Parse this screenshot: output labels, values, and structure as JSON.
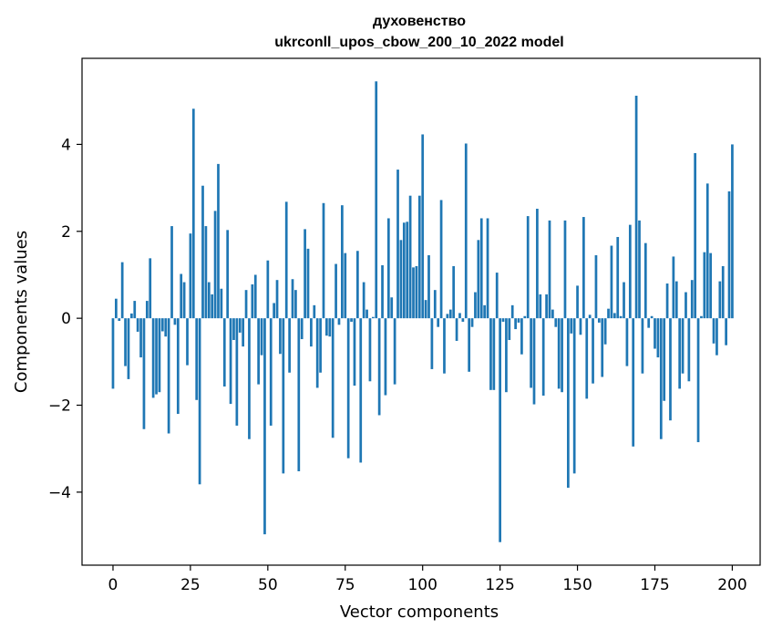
{
  "chart_data": {
    "type": "bar",
    "title": "духовенство",
    "subtitle": "ukrconll_upos_cbow_200_10_2022 model",
    "xlabel": "Vector components",
    "ylabel": "Components values",
    "xlim": [
      -10,
      209
    ],
    "ylim": [
      -5.68,
      5.98
    ],
    "xticks": [
      0,
      25,
      50,
      75,
      100,
      125,
      150,
      175,
      200
    ],
    "yticks": [
      -4,
      -2,
      0,
      2,
      4
    ],
    "grid": false,
    "bar_color": "#1f77b4",
    "x_start": 0,
    "values": [
      -1.62,
      0.45,
      -0.06,
      1.29,
      -1.1,
      -1.4,
      0.11,
      0.4,
      -0.31,
      -0.9,
      -2.55,
      0.4,
      1.38,
      -1.83,
      -1.75,
      -1.7,
      -0.3,
      -0.42,
      -2.65,
      2.12,
      -0.15,
      -2.2,
      1.02,
      0.83,
      -1.08,
      1.95,
      4.82,
      -1.88,
      -3.82,
      3.05,
      2.12,
      0.83,
      0.55,
      2.47,
      3.55,
      0.68,
      -1.57,
      2.03,
      -1.97,
      -0.5,
      -2.47,
      -0.33,
      -0.65,
      0.65,
      -2.78,
      0.78,
      1.0,
      -1.52,
      -0.85,
      -4.97,
      1.33,
      -2.47,
      0.35,
      0.88,
      -0.82,
      -3.57,
      2.68,
      -1.25,
      0.9,
      0.65,
      -3.52,
      -0.48,
      2.05,
      1.6,
      -0.65,
      0.3,
      -1.6,
      -1.25,
      2.65,
      -0.4,
      -0.42,
      -2.75,
      1.25,
      -0.15,
      2.6,
      1.5,
      -3.22,
      -0.08,
      -1.55,
      1.55,
      -3.32,
      0.83,
      0.2,
      -1.45,
      0.03,
      5.45,
      -2.23,
      1.22,
      -1.77,
      2.3,
      0.48,
      -1.52,
      3.42,
      1.8,
      2.2,
      2.22,
      2.82,
      1.17,
      1.2,
      2.82,
      4.23,
      0.42,
      1.45,
      -1.17,
      0.65,
      -0.2,
      2.72,
      -1.27,
      0.1,
      0.2,
      1.2,
      -0.52,
      0.12,
      -0.08,
      4.02,
      -1.23,
      -0.2,
      0.6,
      1.8,
      2.3,
      0.3,
      2.3,
      -1.65,
      -1.65,
      1.05,
      -5.15,
      -0.08,
      -1.7,
      -0.5,
      0.3,
      -0.25,
      -0.1,
      -0.83,
      0.05,
      2.35,
      -1.6,
      -1.98,
      2.52,
      0.55,
      -1.78,
      0.55,
      2.25,
      0.2,
      -0.2,
      -1.62,
      -1.7,
      2.25,
      -3.9,
      -0.35,
      -3.57,
      0.75,
      -0.38,
      2.33,
      -1.85,
      0.08,
      -1.5,
      1.45,
      -0.1,
      -1.35,
      -0.6,
      0.22,
      1.67,
      0.12,
      1.87,
      0.05,
      0.83,
      -1.1,
      2.15,
      -2.95,
      5.12,
      2.25,
      -1.27,
      1.73,
      -0.22,
      0.05,
      -0.7,
      -0.9,
      -2.78,
      -1.9,
      0.8,
      -2.35,
      1.42,
      0.85,
      -1.62,
      -1.27,
      0.6,
      -1.45,
      0.88,
      3.8,
      -2.85,
      0.05,
      1.52,
      3.1,
      1.5,
      -0.58,
      -0.85,
      0.85,
      1.2,
      -0.62,
      2.92,
      4.0
    ]
  }
}
